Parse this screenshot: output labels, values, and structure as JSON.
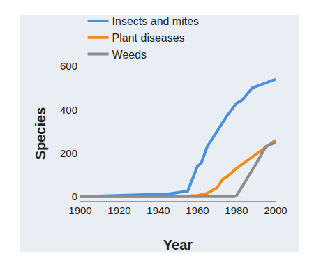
{
  "chart_data": {
    "type": "line",
    "x_label": "Year",
    "y_label": "Species",
    "xlim": [
      1900,
      2000
    ],
    "xticks": [
      1900,
      1920,
      1940,
      1960,
      1980,
      2000
    ],
    "ylim": [
      -20,
      600
    ],
    "yticks": [
      0,
      200,
      400,
      600
    ],
    "grid": false,
    "legend": "top-left",
    "series": [
      {
        "name": "Insects and mites",
        "color": "#4a90d9",
        "x": [
          1900,
          1920,
          1940,
          1945,
          1955,
          1960,
          1962,
          1965,
          1970,
          1975,
          1980,
          1983,
          1988,
          2000
        ],
        "values": [
          0,
          5,
          10,
          12,
          25,
          140,
          155,
          230,
          300,
          370,
          430,
          445,
          500,
          540
        ]
      },
      {
        "name": "Plant diseases",
        "color": "#f28a1e",
        "x": [
          1900,
          1950,
          1960,
          1965,
          1970,
          1973,
          1975,
          1980,
          2000
        ],
        "values": [
          0,
          0,
          5,
          15,
          40,
          80,
          90,
          130,
          260
        ]
      },
      {
        "name": "Weeds",
        "color": "#8c8c8c",
        "x": [
          1900,
          1979,
          1980,
          1990,
          1995,
          2000
        ],
        "values": [
          0,
          0,
          5,
          150,
          230,
          250
        ]
      }
    ]
  }
}
